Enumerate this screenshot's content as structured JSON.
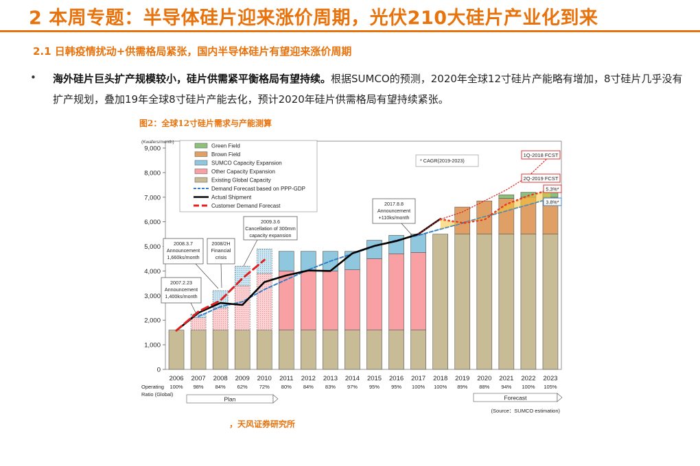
{
  "header": {
    "title": "2 本周专题：半导体硅片迎来涨价周期，光伏210大硅片产业化到来",
    "subtitle": "2.1 日韩疫情扰动+供需格局紧张，国内半导体硅片有望迎来涨价周期"
  },
  "body": {
    "bullet": "•",
    "bold": "海外硅片巨头扩产规模较小，硅片供需紧平衡格局有望持续。",
    "text": "根据SUMCO的预测，2020年全球12寸硅片产能略有增加，8寸硅片几乎没有扩产规划，叠加19年全球8寸硅片产能去化，预计2020年硅片供需格局有望持续紧张。"
  },
  "figure": {
    "title": "图2：全球12寸硅片需求与产能测算",
    "source": "，天风证券研究所"
  },
  "chart_data": {
    "type": "bar",
    "unit_label": "(Kwafers/month)",
    "ylim": [
      0,
      9000
    ],
    "yticks": [
      "0",
      "1,000",
      "2,000",
      "3,000",
      "4,000",
      "5,000",
      "6,000",
      "7,000",
      "8,000",
      "9,000"
    ],
    "categories": [
      "2006",
      "2007",
      "2008",
      "2009",
      "2010",
      "2011",
      "2012",
      "2013",
      "2014",
      "2015",
      "2016",
      "2017",
      "2018",
      "2019",
      "2020",
      "2021",
      "2022",
      "2023"
    ],
    "operating_label": "Operating",
    "ratio_label": "Ratio (Global)",
    "operating_ratio": [
      "100%",
      "98%",
      "84%",
      "62%",
      "72%",
      "80%",
      "84%",
      "83%",
      "97%",
      "95%",
      "95%",
      "100%",
      "100%",
      "89%",
      "88%",
      "94%",
      "100%",
      "105%"
    ],
    "stack_series": [
      {
        "name": "Existing Global Capacity",
        "color": "#c8bc96",
        "values": [
          1600,
          1600,
          1600,
          1600,
          1600,
          1600,
          1600,
          1600,
          1600,
          1600,
          1600,
          1600,
          5500,
          5500,
          5500,
          5500,
          5500,
          5500
        ]
      },
      {
        "name": "Other Capacity Expansion",
        "color": "#f9a0a4",
        "values": [
          0,
          500,
          900,
          1800,
          2300,
          2400,
          2400,
          2400,
          2450,
          2900,
          3100,
          3150,
          0,
          0,
          0,
          0,
          0,
          0
        ]
      },
      {
        "name": "SUMCO Capacity Expansion",
        "color": "#8fc8de",
        "values": [
          0,
          150,
          700,
          800,
          1000,
          800,
          800,
          800,
          750,
          750,
          750,
          750,
          0,
          0,
          0,
          0,
          0,
          0
        ]
      },
      {
        "name": "Brown Field",
        "color": "#e0a065",
        "values": [
          0,
          0,
          0,
          0,
          0,
          0,
          0,
          0,
          0,
          0,
          0,
          0,
          0,
          1100,
          1350,
          1450,
          1500,
          1500
        ]
      },
      {
        "name": "Green Field",
        "color": "#8ec07c",
        "values": [
          0,
          0,
          0,
          0,
          0,
          0,
          0,
          0,
          0,
          0,
          0,
          0,
          0,
          0,
          0,
          150,
          200,
          250
        ]
      }
    ],
    "planned_years": [
      "2007",
      "2008",
      "2009",
      "2010"
    ],
    "line_series": [
      {
        "name": "Demand Forecast based on PPP-GDP",
        "color": "#2f7ec6",
        "style": "dashed",
        "x": [
          "2007",
          "2008",
          "2009",
          "2010",
          "2011",
          "2012",
          "2013",
          "2014",
          "2015",
          "2016",
          "2017",
          "2018",
          "2019",
          "2020",
          "2021",
          "2022",
          "2023"
        ],
        "values": [
          2150,
          2550,
          2750,
          3250,
          3650,
          4050,
          4400,
          4700,
          5000,
          5250,
          5450,
          5700,
          5950,
          6200,
          6450,
          6700,
          6950
        ]
      },
      {
        "name": "Actual Shipment",
        "color": "#000000",
        "style": "solid",
        "x": [
          "2006",
          "2007",
          "2008",
          "2009",
          "2010",
          "2011",
          "2012",
          "2013",
          "2014",
          "2015",
          "2016",
          "2017",
          "2018"
        ],
        "values": [
          1580,
          2300,
          2700,
          2620,
          3550,
          3820,
          4020,
          4000,
          4720,
          5020,
          5220,
          5500,
          6120
        ]
      },
      {
        "name": "Customer Demand Forecast",
        "color": "#e02020",
        "style": "longdash",
        "x": [
          "2006",
          "2007",
          "2008",
          "2009",
          "2010"
        ],
        "values": [
          1580,
          2350,
          2800,
          3700,
          4450
        ]
      },
      {
        "name": "1Q-2018 FCST",
        "color": "#e02020",
        "style": "dotted",
        "x": [
          "2017",
          "2018",
          "2019",
          "2020",
          "2021",
          "2022",
          "2023"
        ],
        "values": [
          5500,
          6100,
          6400,
          6850,
          7300,
          7850,
          8700
        ]
      },
      {
        "name": "2Q-2019 FCST",
        "color": "#e02020",
        "style": "dotted",
        "x": [
          "2018",
          "2019",
          "2020",
          "2021",
          "2022",
          "2023"
        ],
        "values": [
          6100,
          5950,
          6100,
          6700,
          7050,
          7300
        ]
      }
    ],
    "legend": [
      "Green Field",
      "Brown Field",
      "SUMCO Capacity Expansion",
      "Other Capacity Expansion",
      "Existing Global Capacity",
      "Demand Forecast based on PPP-GDP",
      "Actual Shipment",
      "Customer Demand Forecast"
    ],
    "annotations": {
      "a2007": [
        "2007.2.23",
        "Announcement",
        "1,400ks/month"
      ],
      "a2008": [
        "2008.3.7",
        "Announcement",
        "1,660ks/month"
      ],
      "a2008b": [
        "2008/2H",
        "Financial",
        "crisis"
      ],
      "a2009": [
        "2009.3.6",
        "Cancellation of 300mm",
        "capacity expansion"
      ],
      "a2017": [
        "2017.8.8",
        "Announcement",
        "+110ks/month"
      ],
      "cagr": "* CAGR(2019-2023)",
      "fcst1": "1Q-2018 FCST",
      "fcst2": "2Q-2019 FCST",
      "pct1": "5.3%*",
      "pct2": "3.8%*",
      "plan": "Plan",
      "forecast": "Forecast",
      "source": "(Source：SUMCO estimation)"
    }
  }
}
